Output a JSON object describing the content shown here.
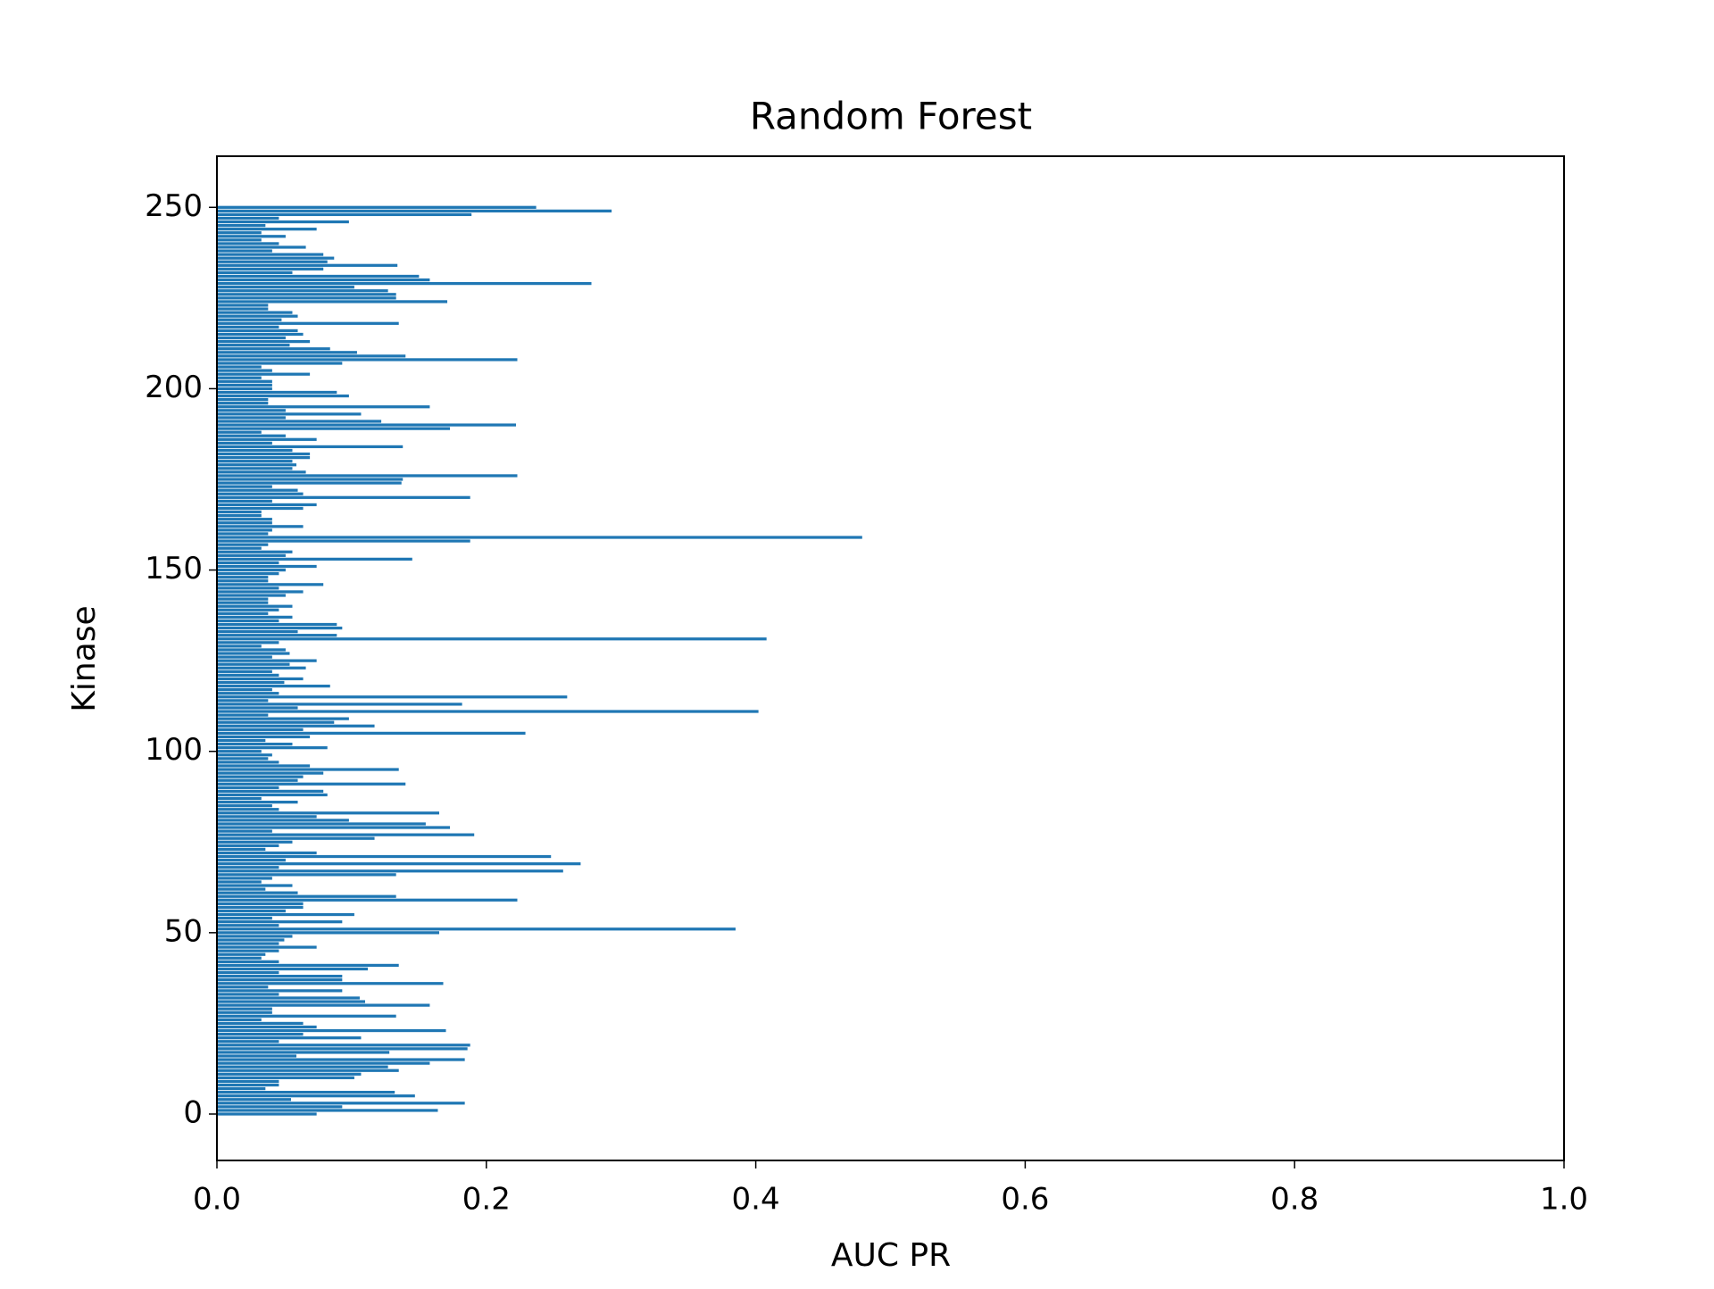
{
  "chart_data": {
    "type": "barh",
    "title": "Random Forest",
    "xlabel": "AUC PR",
    "ylabel": "Kinase",
    "color": "#1f77b4",
    "xlim": [
      0,
      1
    ],
    "xticks": [
      {
        "value": 0,
        "label": "0.0"
      },
      0.2,
      0.4,
      0.6,
      0.8,
      {
        "value": 1,
        "label": "1.0"
      }
    ],
    "ylim": [
      -12.8,
      264.1
    ],
    "yticks": [
      0,
      50,
      100,
      150,
      200,
      250
    ],
    "y": [
      0,
      1,
      2,
      3,
      4,
      5,
      6,
      7,
      8,
      9,
      10,
      11,
      12,
      13,
      14,
      15,
      16,
      17,
      18,
      19,
      20,
      21,
      22,
      23,
      24,
      25,
      26,
      27,
      28,
      29,
      30,
      31,
      32,
      33,
      34,
      35,
      36,
      37,
      38,
      39,
      40,
      41,
      42,
      43,
      44,
      45,
      46,
      47,
      48,
      49,
      50,
      51,
      52,
      53,
      54,
      55,
      56,
      57,
      58,
      59,
      60,
      61,
      62,
      63,
      64,
      65,
      66,
      67,
      68,
      69,
      70,
      71,
      72,
      73,
      74,
      75,
      76,
      77,
      78,
      79,
      80,
      81,
      82,
      83,
      84,
      85,
      86,
      87,
      88,
      89,
      90,
      91,
      92,
      93,
      94,
      95,
      96,
      97,
      98,
      99,
      100,
      101,
      102,
      103,
      104,
      105,
      106,
      107,
      108,
      109,
      110,
      111,
      112,
      113,
      114,
      115,
      116,
      117,
      118,
      119,
      120,
      121,
      122,
      123,
      124,
      125,
      126,
      127,
      128,
      129,
      130,
      131,
      132,
      133,
      134,
      135,
      136,
      137,
      138,
      139,
      140,
      141,
      142,
      143,
      144,
      145,
      146,
      147,
      148,
      149,
      150,
      151,
      152,
      153,
      154,
      155,
      156,
      157,
      158,
      159,
      160,
      161,
      162,
      163,
      164,
      165,
      166,
      167,
      168,
      169,
      170,
      171,
      172,
      173,
      174,
      175,
      176,
      177,
      178,
      179,
      180,
      181,
      182,
      183,
      184,
      185,
      186,
      187,
      188,
      189,
      190,
      191,
      192,
      193,
      194,
      195,
      196,
      197,
      198,
      199,
      200,
      201,
      202,
      203,
      204,
      205,
      206,
      207,
      208,
      209,
      210,
      211,
      212,
      213,
      214,
      215,
      216,
      217,
      218,
      219,
      220,
      221,
      222,
      223,
      224,
      225,
      226,
      227,
      228,
      229,
      230,
      231,
      232,
      233,
      234,
      235,
      236,
      237,
      238,
      239,
      240,
      241,
      242,
      243,
      244,
      245,
      246,
      247,
      248,
      249,
      250
    ],
    "values": [
      0.074,
      0.164,
      0.093,
      0.184,
      0.055,
      0.147,
      0.132,
      0.036,
      0.046,
      0.046,
      0.102,
      0.107,
      0.135,
      0.127,
      0.158,
      0.184,
      0.059,
      0.128,
      0.186,
      0.188,
      0.046,
      0.107,
      0.064,
      0.17,
      0.074,
      0.064,
      0.033,
      0.133,
      0.041,
      0.041,
      0.158,
      0.11,
      0.106,
      0.046,
      0.093,
      0.038,
      0.168,
      0.093,
      0.093,
      0.046,
      0.112,
      0.135,
      0.046,
      0.033,
      0.036,
      0.046,
      0.074,
      0.046,
      0.05,
      0.056,
      0.165,
      0.385,
      0.046,
      0.093,
      0.041,
      0.102,
      0.051,
      0.064,
      0.064,
      0.223,
      0.133,
      0.06,
      0.036,
      0.056,
      0.033,
      0.041,
      0.133,
      0.257,
      0.046,
      0.27,
      0.051,
      0.248,
      0.074,
      0.036,
      0.046,
      0.056,
      0.117,
      0.191,
      0.041,
      0.173,
      0.155,
      0.098,
      0.074,
      0.165,
      0.046,
      0.041,
      0.06,
      0.033,
      0.082,
      0.079,
      0.046,
      0.14,
      0.06,
      0.064,
      0.079,
      0.135,
      0.069,
      0.046,
      0.038,
      0.041,
      0.033,
      0.082,
      0.056,
      0.036,
      0.069,
      0.229,
      0.064,
      0.117,
      0.087,
      0.098,
      0.038,
      0.402,
      0.06,
      0.182,
      0.038,
      0.26,
      0.046,
      0.041,
      0.084,
      0.05,
      0.064,
      0.046,
      0.041,
      0.066,
      0.054,
      0.074,
      0.041,
      0.054,
      0.051,
      0.033,
      0.046,
      0.408,
      0.089,
      0.06,
      0.093,
      0.089,
      0.046,
      0.056,
      0.038,
      0.046,
      0.056,
      0.038,
      0.038,
      0.051,
      0.064,
      0.046,
      0.079,
      0.038,
      0.038,
      0.046,
      0.051,
      0.074,
      0.046,
      0.145,
      0.051,
      0.056,
      0.033,
      0.038,
      0.188,
      0.479,
      0.038,
      0.041,
      0.064,
      0.041,
      0.041,
      0.033,
      0.033,
      0.064,
      0.074,
      0.041,
      0.188,
      0.064,
      0.06,
      0.041,
      0.137,
      0.138,
      0.223,
      0.066,
      0.056,
      0.059,
      0.056,
      0.069,
      0.069,
      0.056,
      0.138,
      0.041,
      0.074,
      0.051,
      0.033,
      0.173,
      0.222,
      0.122,
      0.051,
      0.107,
      0.051,
      0.158,
      0.038,
      0.038,
      0.098,
      0.089,
      0.041,
      0.041,
      0.041,
      0.033,
      0.069,
      0.041,
      0.033,
      0.093,
      0.223,
      0.14,
      0.104,
      0.084,
      0.054,
      0.069,
      0.051,
      0.064,
      0.06,
      0.046,
      0.135,
      0.048,
      0.06,
      0.056,
      0.038,
      0.038,
      0.171,
      0.133,
      0.133,
      0.127,
      0.102,
      0.278,
      0.158,
      0.15,
      0.056,
      0.079,
      0.134,
      0.082,
      0.087,
      0.079,
      0.041,
      0.066,
      0.046,
      0.033,
      0.051,
      0.033,
      0.074,
      0.036,
      0.098,
      0.046,
      0.189,
      0.293,
      0.237
    ]
  }
}
